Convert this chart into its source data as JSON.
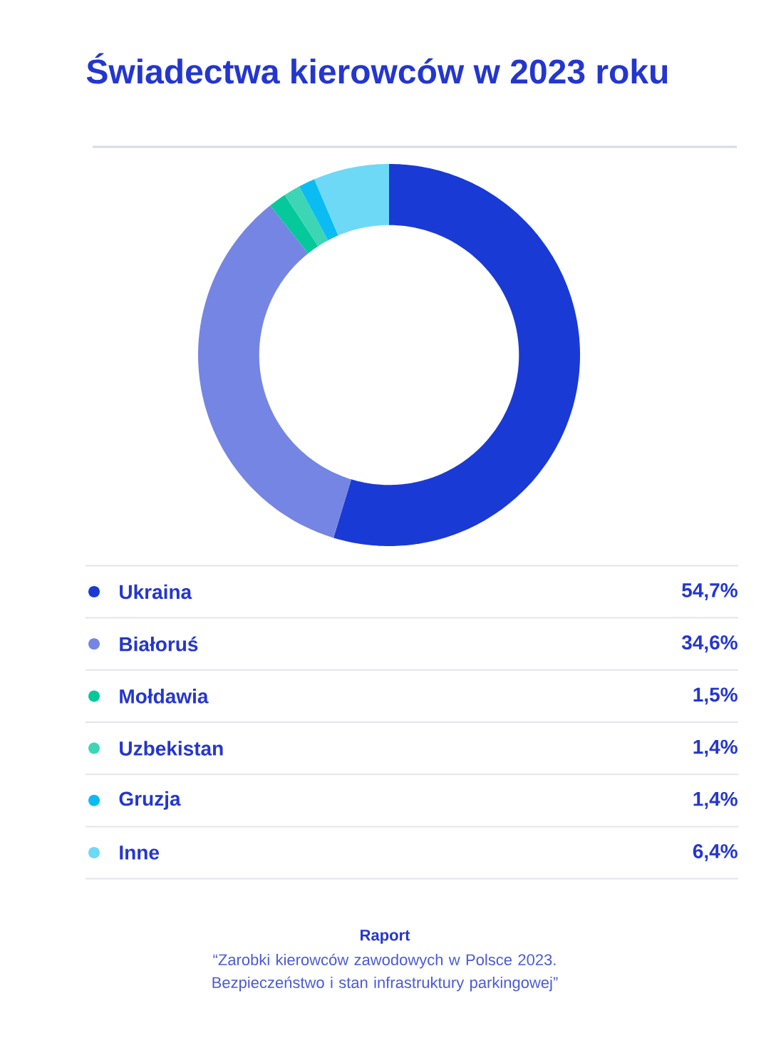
{
  "chart_data": {
    "type": "donut",
    "title": "Świadectwa kierowców w 2023 roku",
    "categories": [
      "Ukraina",
      "Białoruś",
      "Mołdawia",
      "Uzbekistan",
      "Gruzja",
      "Inne"
    ],
    "values": [
      54.7,
      34.6,
      1.5,
      1.4,
      1.4,
      6.4
    ],
    "value_labels": [
      "54,7%",
      "34,6%",
      "1,5%",
      "1,4%",
      "1,4%",
      "6,4%"
    ],
    "colors": [
      "#1a3ad6",
      "#7585e3",
      "#05c99a",
      "#3dd6b5",
      "#0bbcf2",
      "#6dd9f7"
    ],
    "legend": "bottom",
    "annotations": [
      "Raport",
      "“Zarobki kierowców zawodowych w Polsce 2023. Bezpieczeństwo i stan infrastruktury parkingowej”"
    ]
  }
}
